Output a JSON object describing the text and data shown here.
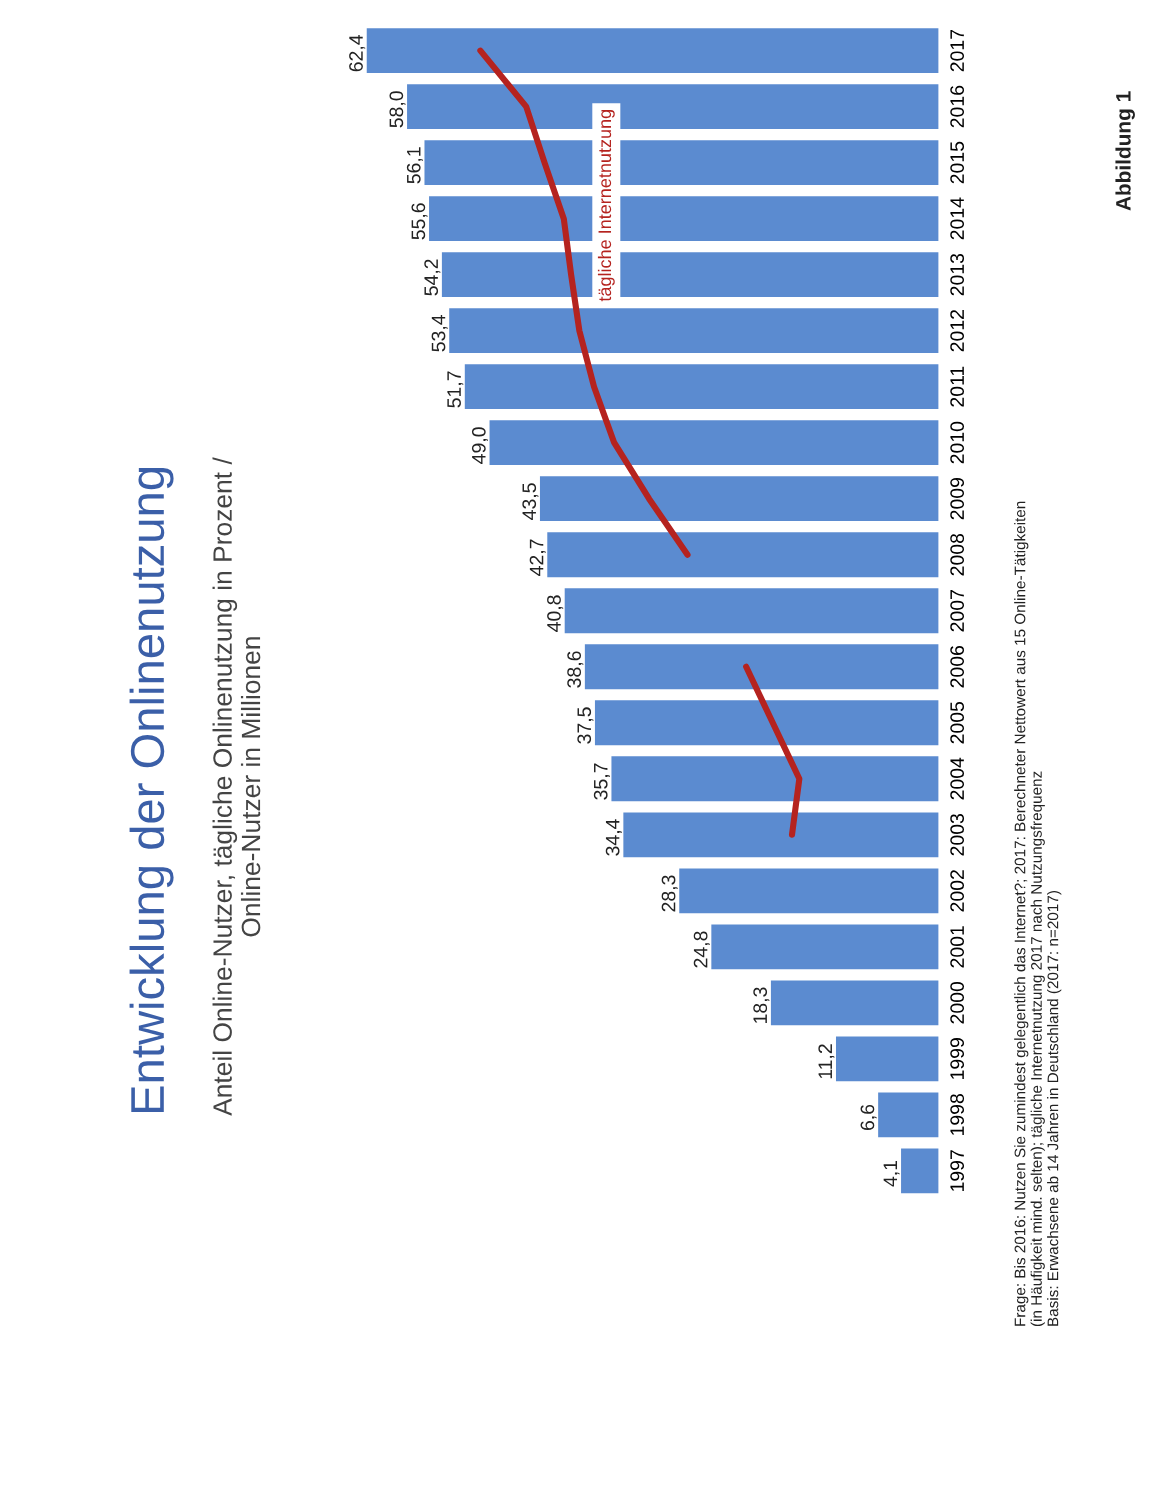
{
  "chart_data": {
    "type": "bar",
    "orientation": "horizontal",
    "title": "Entwicklung der Onlinenutzung",
    "subtitle": "Anteil Online-Nutzer, tägliche Onlinenutzung in Prozent /\nOnline-Nutzer in Millionen",
    "categories": [
      "2017",
      "2016",
      "2015",
      "2014",
      "2013",
      "2012",
      "2011",
      "2010",
      "2009",
      "2008",
      "2007",
      "2006",
      "2005",
      "2004",
      "2003",
      "2002",
      "2001",
      "2000",
      "1999",
      "1998",
      "1997"
    ],
    "series": [
      {
        "color": "#5b8bd0",
        "values": [
          62.4,
          58.0,
          56.1,
          55.6,
          54.2,
          53.4,
          51.7,
          49.0,
          43.5,
          42.7,
          40.8,
          38.6,
          37.5,
          35.7,
          34.4,
          28.3,
          24.8,
          18.3,
          11.2,
          6.6,
          4.1
        ],
        "value_labels": [
          "62,4",
          "58,0",
          "56,1",
          "55,6",
          "54,2",
          "53,4",
          "51,7",
          "49,0",
          "43,5",
          "42,7",
          "40,8",
          "38,6",
          "37,5",
          "35,7",
          "34,4",
          "28,3",
          "24,8",
          "18,3",
          "11,2",
          "6,6",
          "4,1"
        ]
      },
      {
        "type": "line",
        "color": "#b5231f",
        "values": [
          50,
          45,
          43,
          40.9,
          40.1,
          39.2,
          37.6,
          35.4,
          31.6,
          27.4,
          null,
          21,
          18.1,
          15.2,
          16,
          null,
          null,
          null,
          null,
          null,
          null
        ]
      }
    ],
    "annotations": [
      "tägliche Internetnutzung",
      "Frage: Bis 2016: Nutzen Sie zumindest gelegentlich das Internet?; 2017: Berechneter Nettowert aus 15 Online-Tätigkeiten\n(in Häufigkeit mind. selten); tägliche Internetnutzung 2017 nach Nutzungsfrequenz\nBasis: Erwachsene ab 14 Jahren in Deutschland (2017: n=2017)",
      "Abbildung 1"
    ]
  }
}
